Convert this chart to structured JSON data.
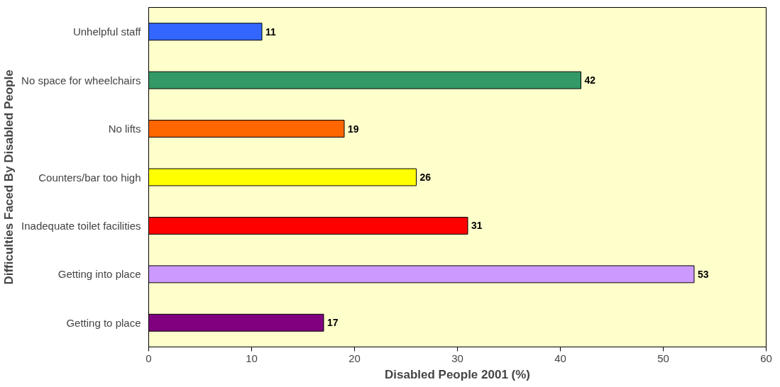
{
  "chart_data": {
    "type": "bar",
    "orientation": "horizontal",
    "xlabel": "Disabled People 2001 (%)",
    "ylabel": "Difficulties Faced By Disabled People",
    "categories": [
      "Unhelpful staff",
      "No space for wheelchairs",
      "No lifts",
      "Counters/bar too high",
      "Inadequate toilet facilities",
      "Getting into place",
      "Getting to place"
    ],
    "values": [
      11,
      42,
      19,
      26,
      31,
      53,
      17
    ],
    "colors": [
      "#3366ff",
      "#339966",
      "#ff6600",
      "#ffff00",
      "#ff0000",
      "#cc99ff",
      "#800080"
    ],
    "xlim": [
      0,
      60
    ],
    "xticks": [
      0,
      10,
      20,
      30,
      40,
      50,
      60
    ],
    "grid": false,
    "data_labels": true
  }
}
